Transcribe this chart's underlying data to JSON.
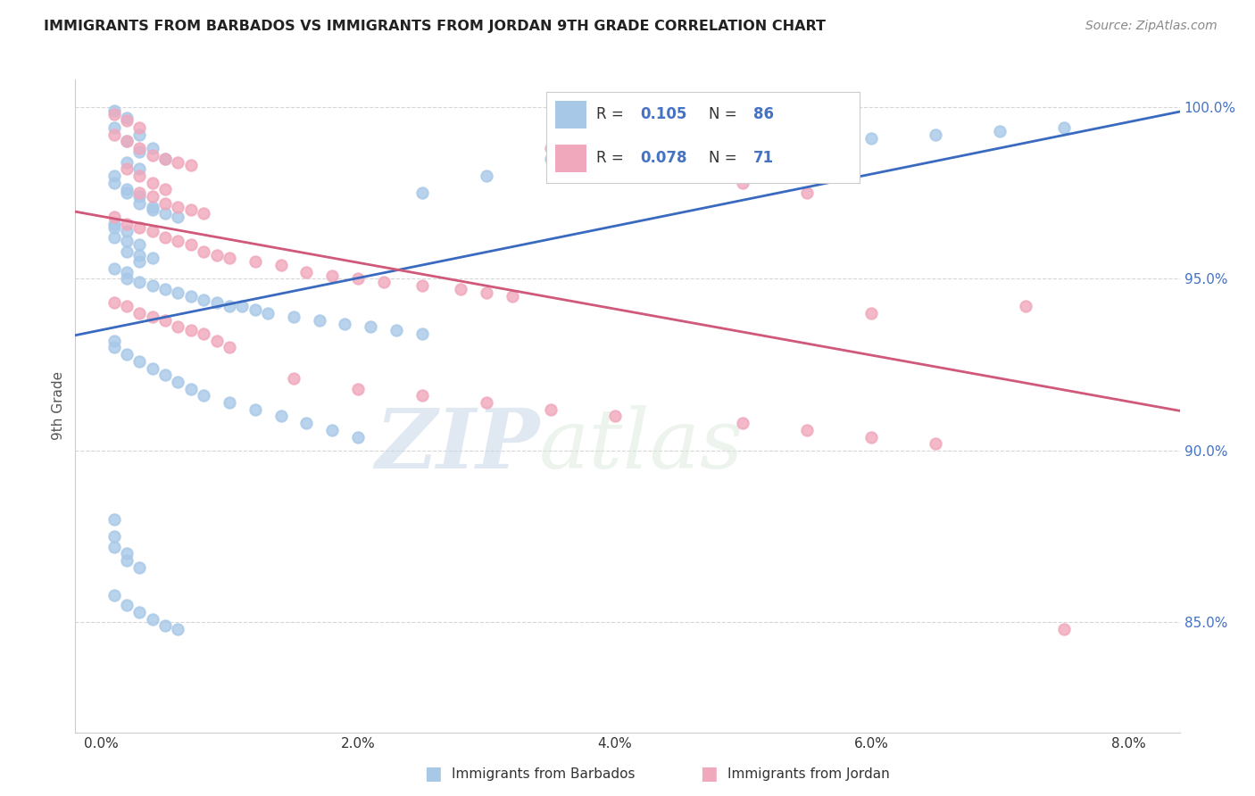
{
  "title": "IMMIGRANTS FROM BARBADOS VS IMMIGRANTS FROM JORDAN 9TH GRADE CORRELATION CHART",
  "source": "Source: ZipAtlas.com",
  "ylabel": "9th Grade",
  "yaxis_labels": [
    "85.0%",
    "90.0%",
    "95.0%",
    "100.0%"
  ],
  "xaxis_ticks": [
    0.0,
    0.02,
    0.04,
    0.06,
    0.08
  ],
  "xaxis_tick_labels": [
    "0.0%",
    "2.0%",
    "4.0%",
    "6.0%",
    "8.0%"
  ],
  "yaxis_range": [
    0.818,
    1.008
  ],
  "xaxis_range": [
    -0.002,
    0.084
  ],
  "legend_r1": "0.105",
  "legend_n1": "86",
  "legend_r2": "0.078",
  "legend_n2": "71",
  "series1_color": "#a8c8e8",
  "series2_color": "#f0a8bc",
  "line1_color": "#3a6abf",
  "line2_color": "#d05878",
  "watermark_zip": "ZIP",
  "watermark_atlas": "atlas",
  "barbados_x": [
    0.001,
    0.002,
    0.001,
    0.003,
    0.002,
    0.004,
    0.003,
    0.005,
    0.002,
    0.003,
    0.001,
    0.001,
    0.002,
    0.002,
    0.003,
    0.003,
    0.004,
    0.004,
    0.005,
    0.006,
    0.001,
    0.001,
    0.002,
    0.001,
    0.002,
    0.003,
    0.002,
    0.003,
    0.004,
    0.003,
    0.001,
    0.002,
    0.002,
    0.003,
    0.004,
    0.005,
    0.006,
    0.007,
    0.008,
    0.009,
    0.01,
    0.011,
    0.012,
    0.013,
    0.015,
    0.017,
    0.019,
    0.021,
    0.023,
    0.025,
    0.001,
    0.001,
    0.002,
    0.003,
    0.004,
    0.005,
    0.006,
    0.007,
    0.008,
    0.01,
    0.012,
    0.014,
    0.016,
    0.018,
    0.02,
    0.025,
    0.03,
    0.035,
    0.04,
    0.05,
    0.06,
    0.065,
    0.07,
    0.075,
    0.001,
    0.001,
    0.001,
    0.002,
    0.002,
    0.003,
    0.001,
    0.002,
    0.003,
    0.004,
    0.005,
    0.006
  ],
  "barbados_y": [
    0.999,
    0.997,
    0.994,
    0.992,
    0.99,
    0.988,
    0.987,
    0.985,
    0.984,
    0.982,
    0.98,
    0.978,
    0.976,
    0.975,
    0.974,
    0.972,
    0.971,
    0.97,
    0.969,
    0.968,
    0.966,
    0.965,
    0.964,
    0.962,
    0.961,
    0.96,
    0.958,
    0.957,
    0.956,
    0.955,
    0.953,
    0.952,
    0.95,
    0.949,
    0.948,
    0.947,
    0.946,
    0.945,
    0.944,
    0.943,
    0.942,
    0.942,
    0.941,
    0.94,
    0.939,
    0.938,
    0.937,
    0.936,
    0.935,
    0.934,
    0.932,
    0.93,
    0.928,
    0.926,
    0.924,
    0.922,
    0.92,
    0.918,
    0.916,
    0.914,
    0.912,
    0.91,
    0.908,
    0.906,
    0.904,
    0.975,
    0.98,
    0.985,
    0.988,
    0.99,
    0.991,
    0.992,
    0.993,
    0.994,
    0.88,
    0.875,
    0.872,
    0.87,
    0.868,
    0.866,
    0.858,
    0.855,
    0.853,
    0.851,
    0.849,
    0.848
  ],
  "jordan_x": [
    0.001,
    0.002,
    0.003,
    0.001,
    0.002,
    0.003,
    0.004,
    0.005,
    0.006,
    0.007,
    0.002,
    0.003,
    0.004,
    0.005,
    0.003,
    0.004,
    0.005,
    0.006,
    0.007,
    0.008,
    0.001,
    0.002,
    0.003,
    0.004,
    0.005,
    0.006,
    0.007,
    0.008,
    0.009,
    0.01,
    0.012,
    0.014,
    0.016,
    0.018,
    0.02,
    0.022,
    0.025,
    0.028,
    0.03,
    0.032,
    0.001,
    0.002,
    0.003,
    0.004,
    0.005,
    0.006,
    0.007,
    0.008,
    0.009,
    0.01,
    0.015,
    0.02,
    0.025,
    0.03,
    0.035,
    0.04,
    0.05,
    0.055,
    0.06,
    0.065,
    0.035,
    0.038,
    0.04,
    0.042,
    0.045,
    0.048,
    0.05,
    0.055,
    0.06,
    0.072,
    0.075
  ],
  "jordan_y": [
    0.998,
    0.996,
    0.994,
    0.992,
    0.99,
    0.988,
    0.986,
    0.985,
    0.984,
    0.983,
    0.982,
    0.98,
    0.978,
    0.976,
    0.975,
    0.974,
    0.972,
    0.971,
    0.97,
    0.969,
    0.968,
    0.966,
    0.965,
    0.964,
    0.962,
    0.961,
    0.96,
    0.958,
    0.957,
    0.956,
    0.955,
    0.954,
    0.952,
    0.951,
    0.95,
    0.949,
    0.948,
    0.947,
    0.946,
    0.945,
    0.943,
    0.942,
    0.94,
    0.939,
    0.938,
    0.936,
    0.935,
    0.934,
    0.932,
    0.93,
    0.921,
    0.918,
    0.916,
    0.914,
    0.912,
    0.91,
    0.908,
    0.906,
    0.904,
    0.902,
    0.988,
    0.986,
    0.985,
    0.984,
    0.982,
    0.98,
    0.978,
    0.975,
    0.94,
    0.942,
    0.848
  ]
}
